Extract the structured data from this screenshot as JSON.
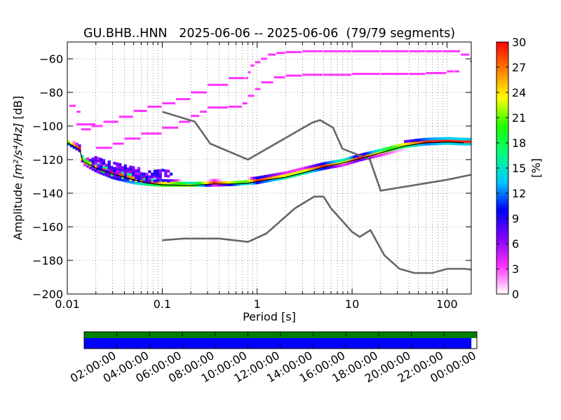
{
  "chart_data": {
    "type": "heatmap",
    "title": "GU.BHB..HNN   2025-06-06 -- 2025-06-06  (79/79 segments)",
    "xlabel": "Period [s]",
    "ylabel_prefix": "Amplitude ",
    "ylabel_units": "[m²/s⁴/Hz]",
    "ylabel_suffix": " [dB]",
    "xscale": "log",
    "xlim": [
      0.01,
      180
    ],
    "ylim": [
      -200,
      -50
    ],
    "x_ticks": [
      0.01,
      0.1,
      1,
      10,
      100
    ],
    "x_tick_labels": [
      "0.01",
      "0.1",
      "1",
      "10",
      "100"
    ],
    "y_ticks": [
      -200,
      -180,
      -160,
      -140,
      -120,
      -100,
      -80,
      -60
    ],
    "grid": true,
    "colorbar": {
      "label": "[%]",
      "range": [
        0,
        30
      ],
      "ticks": [
        0,
        3,
        6,
        9,
        12,
        15,
        18,
        21,
        24,
        27,
        30
      ],
      "colors": [
        "#ffffff",
        "#ff33ff",
        "#8000ff",
        "#0000ff",
        "#00c8ff",
        "#00ff80",
        "#20ff00",
        "#ffff00",
        "#ff8000",
        "#ff0000"
      ]
    },
    "noise_model_low": {
      "name": "",
      "x": [
        0.1,
        0.17,
        0.4,
        0.8,
        1.25,
        2.5,
        4.0,
        5.0,
        6.0,
        10.0,
        12.0,
        15.6,
        21.9,
        31.6,
        45.0,
        70.0,
        101.0,
        154.0,
        180.0
      ],
      "y": [
        -168,
        -167,
        -167,
        -169,
        -164,
        -149,
        -142,
        -142,
        -149,
        -163,
        -166,
        -162,
        -177,
        -185,
        -187.5,
        -187.5,
        -185,
        -185,
        -185.5
      ]
    },
    "noise_model_high": {
      "name": "",
      "x": [
        0.1,
        0.22,
        0.32,
        0.8,
        3.8,
        4.6,
        6.3,
        7.9,
        15.4,
        20.0,
        100,
        180
      ],
      "y": [
        -91.5,
        -97.4,
        -110.5,
        -120,
        -98,
        -96.5,
        -101,
        -113.5,
        -120,
        -138.5,
        -132,
        -129
      ]
    },
    "mode_line": {
      "x": [
        0.01,
        0.0135,
        0.0145,
        0.02,
        0.03,
        0.05,
        0.07,
        0.1,
        0.2,
        0.35,
        0.6,
        0.8,
        1.0,
        2.0,
        3.0,
        5.0,
        8.0,
        12.0,
        20.0,
        35.0,
        60.0,
        100.0,
        150.0
      ],
      "y": [
        -110,
        -114,
        -121,
        -125,
        -128.5,
        -132,
        -134,
        -135,
        -135.5,
        -134.5,
        -134.5,
        -134,
        -133,
        -130.5,
        -128,
        -124.5,
        -122,
        -119.5,
        -116,
        -112,
        -110,
        -109.5,
        -110
      ]
    },
    "hist_lower": {
      "x": [
        0.01,
        0.0135,
        0.0145,
        0.02,
        0.03,
        0.05,
        0.07,
        0.1,
        0.2,
        0.35,
        0.6,
        1.0,
        2.0,
        3.0,
        5.0,
        8.0,
        12.0,
        20.0,
        35.0,
        60.0,
        100.0,
        150.0
      ],
      "y": [
        -111,
        -115.5,
        -123,
        -127.5,
        -131.5,
        -134.5,
        -135.5,
        -136,
        -136,
        -136,
        -135.5,
        -134.5,
        -131.5,
        -129,
        -126,
        -124,
        -121,
        -118,
        -114.5,
        -113,
        -112.5,
        -113
      ]
    },
    "hist_upper": {
      "x": [
        0.01,
        0.0135,
        0.0145,
        0.02,
        0.03,
        0.05,
        0.07,
        0.1,
        0.2,
        0.35,
        0.6,
        1.0,
        2.0,
        3.0,
        5.0,
        8.0,
        12.0,
        20.0,
        35.0,
        60.0,
        100.0,
        150.0
      ],
      "y": [
        -108,
        -112,
        -119,
        -121.5,
        -124,
        -126.5,
        -129,
        -130.5,
        -132.5,
        -133,
        -132.5,
        -130.5,
        -127.5,
        -125,
        -122,
        -120,
        -117.5,
        -114,
        -110,
        -108.5,
        -107.5,
        -108
      ]
    },
    "outliers": [
      {
        "x": [
          0.0105,
          0.0125,
          0.014,
          0.018,
          0.024,
          0.035,
          0.05,
          0.07,
          0.1,
          0.14,
          0.2,
          0.3,
          0.5,
          0.75,
          0.8,
          0.85,
          0.95,
          1.1,
          1.3,
          1.6,
          2.0,
          3.0,
          5.0,
          10.0,
          20.0,
          40.0,
          60.0,
          90.0,
          140.0,
          175.0
        ],
        "y": [
          -88,
          -91.5,
          -102,
          -100,
          -97.5,
          -94.5,
          -91,
          -88.5,
          -86.5,
          -84,
          -80,
          -75.5,
          -71.5,
          -71.5,
          -68,
          -64,
          -62,
          -60,
          -57.5,
          -56.5,
          -56,
          -55.5,
          -55.5,
          -55.5,
          -55.5,
          -55.5,
          -55.5,
          -55.5,
          -57.5,
          -61.5
        ]
      },
      {
        "x": [
          0.0125,
          0.02,
          0.03,
          0.04,
          0.06,
          0.1,
          0.15,
          0.2,
          0.25,
          0.3,
          0.5,
          0.7,
          0.8,
          0.95,
          1.1,
          1.5,
          2.0,
          3.0,
          5.0,
          10.0,
          20.0,
          40.0,
          60.0,
          100.0,
          120.0
        ],
        "y": [
          -99,
          -113,
          -110.5,
          -107.5,
          -104.5,
          -101,
          -97.5,
          -94,
          -91.5,
          -89,
          -88.5,
          -86.5,
          -82,
          -78,
          -74,
          -71,
          -70,
          -69.5,
          -69.5,
          -69,
          -69,
          -69,
          -68.5,
          -67.5,
          -67.5
        ]
      }
    ],
    "cloud_blob": {
      "x": [
        0.018,
        0.025,
        0.035,
        0.05,
        0.07,
        0.1,
        0.13
      ],
      "y_top": [
        -119,
        -120,
        -123,
        -125,
        -127,
        -126,
        -128
      ],
      "y_bottom": [
        -126,
        -129,
        -131,
        -133,
        -134,
        -133,
        -134
      ]
    },
    "timeline": {
      "tick_labels": [
        "02:00:00",
        "04:00:00",
        "06:00:00",
        "08:00:00",
        "10:00:00",
        "12:00:00",
        "14:00:00",
        "16:00:00",
        "18:00:00",
        "20:00:00",
        "22:00:00",
        "00:00:00"
      ],
      "data_coverage_color": "#008000",
      "segment_coverage_color": "#0000ff",
      "coverage_fraction": 0.986
    }
  }
}
